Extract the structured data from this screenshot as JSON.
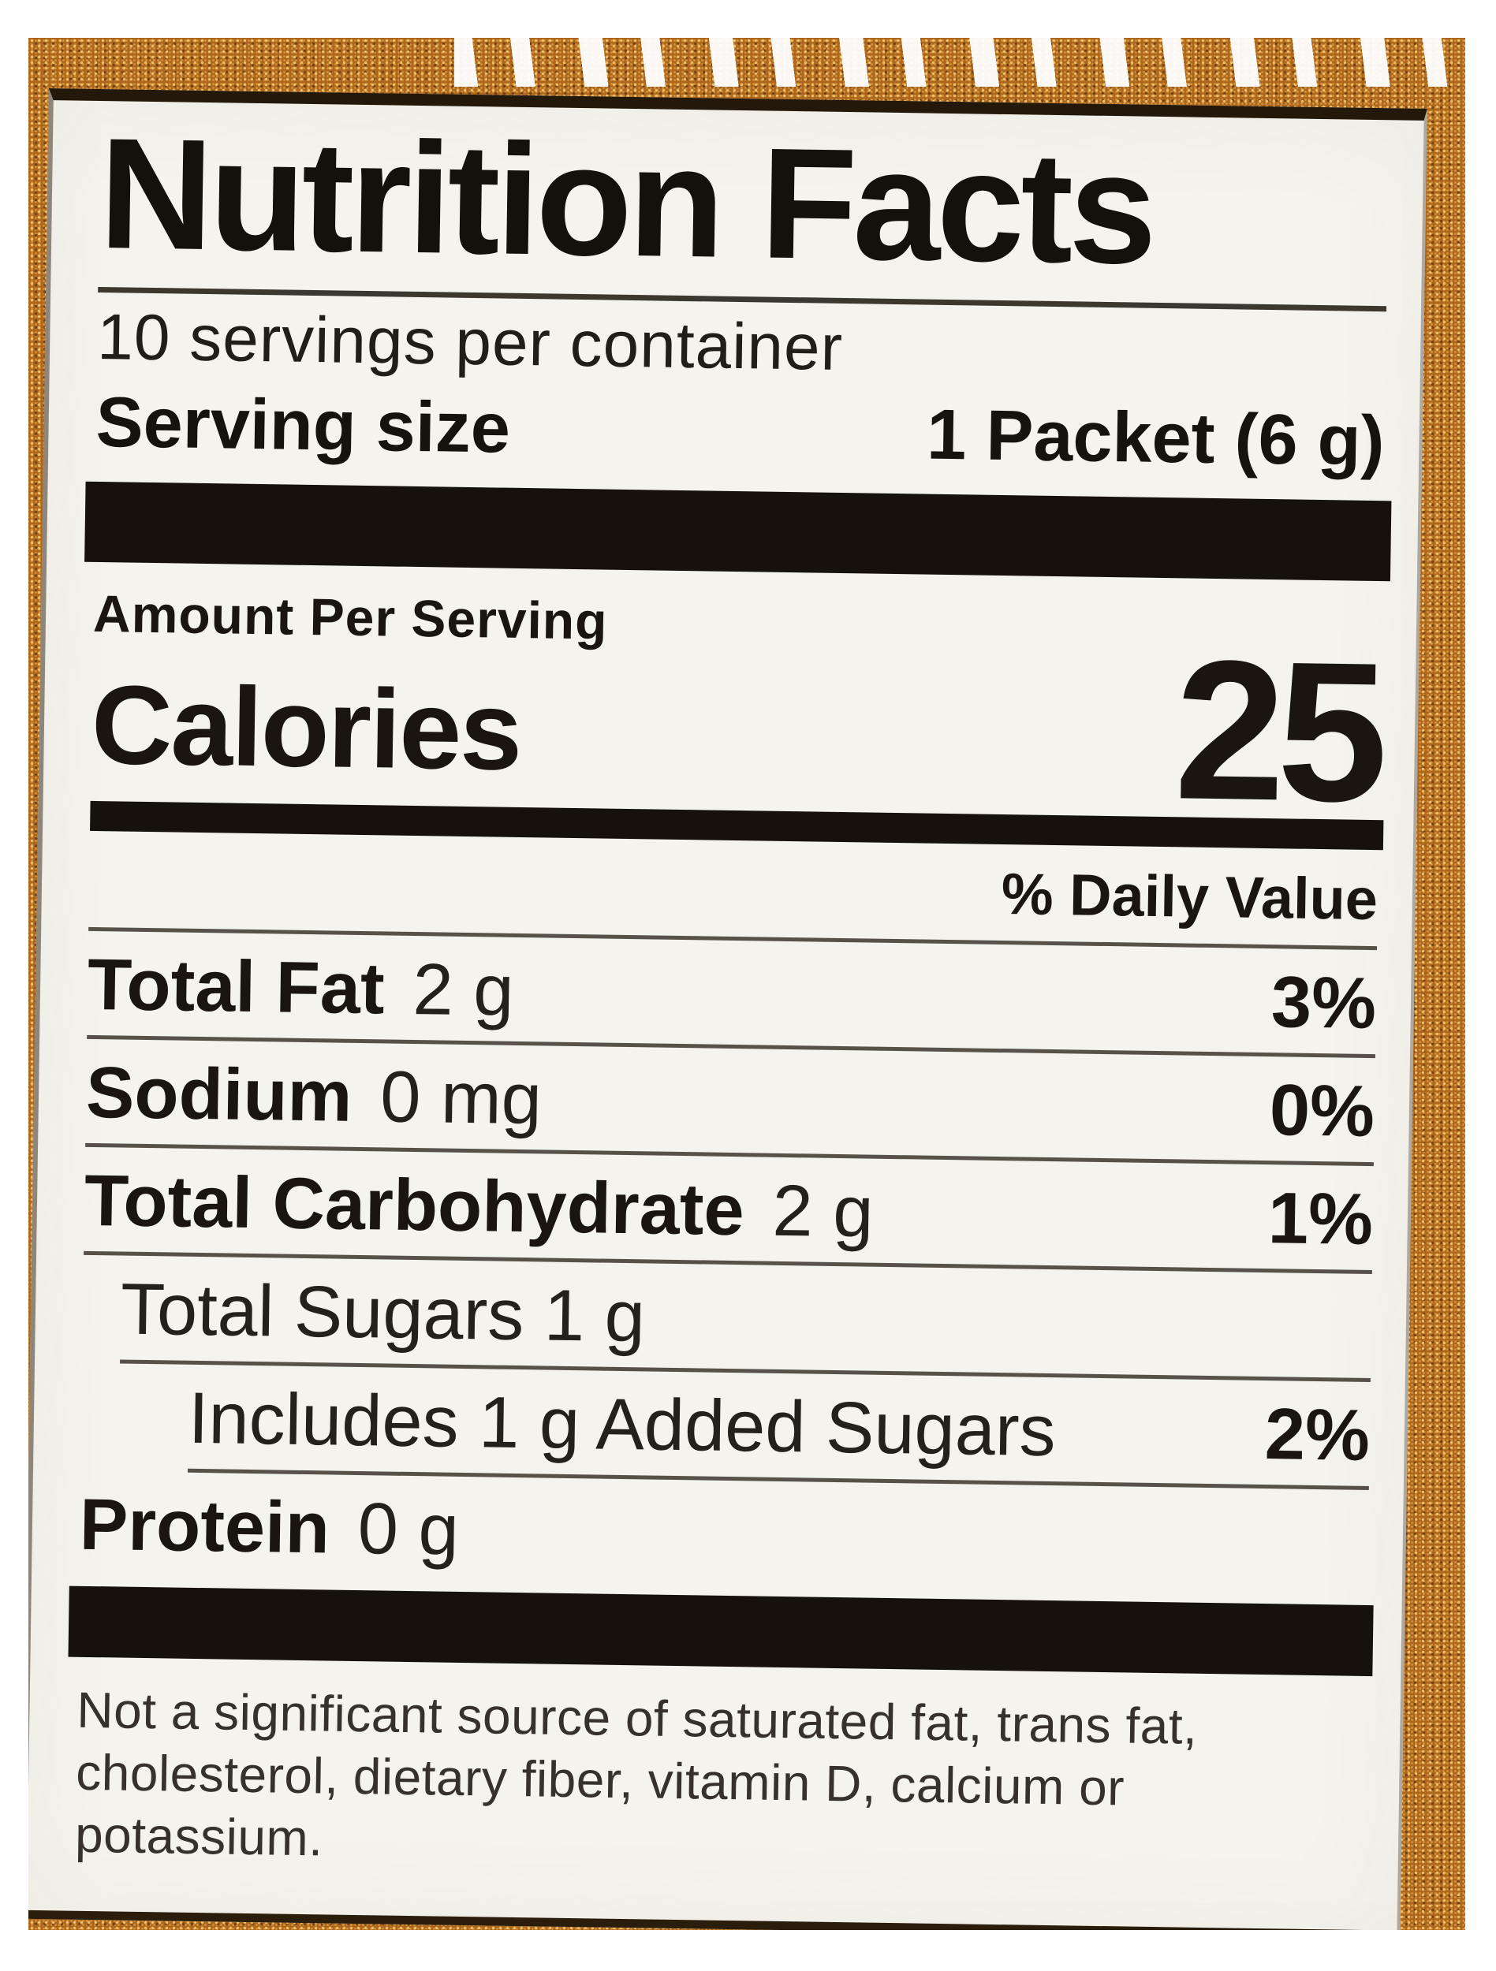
{
  "label": {
    "title": "Nutrition Facts",
    "servings_per_container": "10 servings per container",
    "serving_size_label": "Serving size",
    "serving_size_value": "1 Packet (6 g)",
    "amount_per_serving": "Amount Per Serving",
    "calories_label": "Calories",
    "calories_value": "25",
    "daily_value_header": "% Daily Value",
    "rows": [
      {
        "name": "Total Fat",
        "amount": "2 g",
        "dv": "3%"
      },
      {
        "name": "Sodium",
        "amount": "0 mg",
        "dv": "0%"
      },
      {
        "name": "Total Carbohydrate",
        "amount": "2 g",
        "dv": "1%"
      },
      {
        "name": "Total Sugars 1 g",
        "amount": "",
        "dv": ""
      },
      {
        "name": "Includes 1 g Added Sugars",
        "amount": "",
        "dv": "2%"
      },
      {
        "name": "Protein",
        "amount": "0 g",
        "dv": ""
      }
    ],
    "footnote": "Not a significant source of saturated fat, trans fat, cholesterol, dietary fiber, vitamin D, calcium or potassium."
  },
  "colors": {
    "package_tan": "#ad671d",
    "label_background": "#f4f3ee",
    "ink": "#16110b",
    "rule": "#57514a"
  }
}
